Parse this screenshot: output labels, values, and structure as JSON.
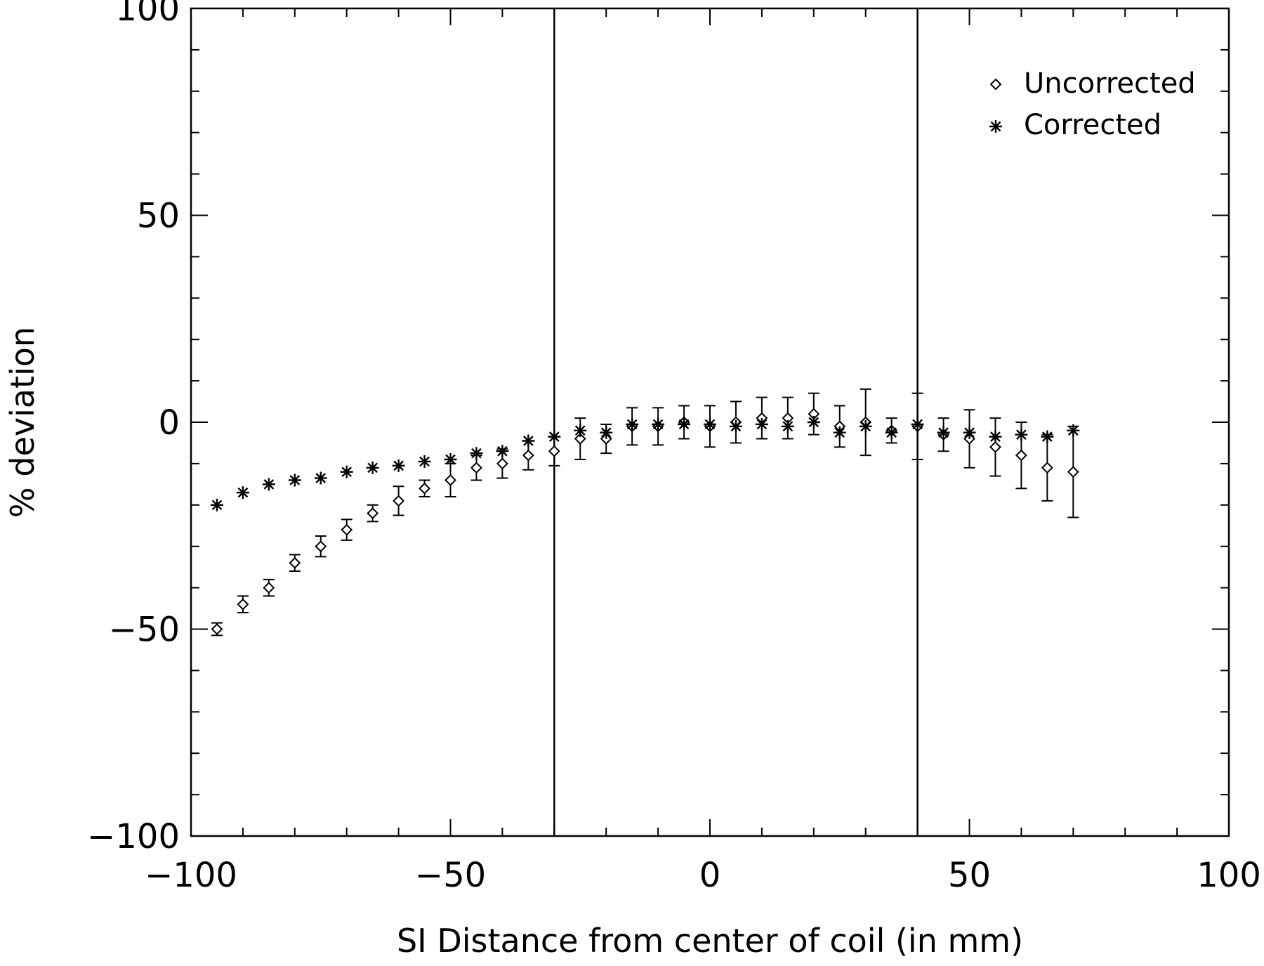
{
  "chart_data": {
    "type": "scatter",
    "xlabel": "SI Distance from center of coil (in mm)",
    "ylabel": "% deviation",
    "xlim": [
      -100,
      100
    ],
    "ylim": [
      -100,
      100
    ],
    "x_ticks": [
      -100,
      -50,
      0,
      50,
      100
    ],
    "y_ticks": [
      -100,
      -50,
      0,
      50,
      100
    ],
    "x_tick_labels": [
      "−100",
      "−50",
      "0",
      "50",
      "100"
    ],
    "y_tick_labels": [
      "−100",
      "−50",
      "0",
      "50",
      "100"
    ],
    "grid": false,
    "legend_position": "top-right",
    "vertical_lines": [
      -30,
      40
    ],
    "series": [
      {
        "name": "Uncorrected",
        "marker": "diamond",
        "points": [
          {
            "x": -95,
            "y": -50,
            "err": 1.5
          },
          {
            "x": -90,
            "y": -44,
            "err": 2
          },
          {
            "x": -85,
            "y": -40,
            "err": 2
          },
          {
            "x": -80,
            "y": -34,
            "err": 2
          },
          {
            "x": -75,
            "y": -30,
            "err": 2.5
          },
          {
            "x": -70,
            "y": -26,
            "err": 2.5
          },
          {
            "x": -65,
            "y": -22,
            "err": 2
          },
          {
            "x": -60,
            "y": -19,
            "err": 3.5
          },
          {
            "x": -55,
            "y": -16,
            "err": 2
          },
          {
            "x": -50,
            "y": -14,
            "err": 4
          },
          {
            "x": -45,
            "y": -11,
            "err": 3
          },
          {
            "x": -40,
            "y": -10,
            "err": 3.5
          },
          {
            "x": -35,
            "y": -8,
            "err": 3.5
          },
          {
            "x": -30,
            "y": -7,
            "err": 3.5
          },
          {
            "x": -25,
            "y": -4,
            "err": 5
          },
          {
            "x": -20,
            "y": -4,
            "err": 3.5
          },
          {
            "x": -15,
            "y": -1,
            "err": 4.5
          },
          {
            "x": -10,
            "y": -1,
            "err": 4.5
          },
          {
            "x": -5,
            "y": 0,
            "err": 4
          },
          {
            "x": 0,
            "y": -1,
            "err": 5
          },
          {
            "x": 5,
            "y": 0,
            "err": 5
          },
          {
            "x": 10,
            "y": 1,
            "err": 5
          },
          {
            "x": 15,
            "y": 1,
            "err": 5
          },
          {
            "x": 20,
            "y": 2,
            "err": 5
          },
          {
            "x": 25,
            "y": -1,
            "err": 5
          },
          {
            "x": 30,
            "y": 0,
            "err": 8
          },
          {
            "x": 35,
            "y": -2,
            "err": 3
          },
          {
            "x": 40,
            "y": -1,
            "err": 8
          },
          {
            "x": 45,
            "y": -3,
            "err": 4
          },
          {
            "x": 50,
            "y": -4,
            "err": 7
          },
          {
            "x": 55,
            "y": -6,
            "err": 7
          },
          {
            "x": 60,
            "y": -8,
            "err": 8
          },
          {
            "x": 65,
            "y": -11,
            "err": 8
          },
          {
            "x": 70,
            "y": -12,
            "err": 11
          }
        ]
      },
      {
        "name": "Corrected",
        "marker": "asterisk",
        "points": [
          {
            "x": -95,
            "y": -20
          },
          {
            "x": -90,
            "y": -17
          },
          {
            "x": -85,
            "y": -15
          },
          {
            "x": -80,
            "y": -14
          },
          {
            "x": -75,
            "y": -13.5
          },
          {
            "x": -70,
            "y": -12
          },
          {
            "x": -65,
            "y": -11
          },
          {
            "x": -60,
            "y": -10.5
          },
          {
            "x": -55,
            "y": -9.5
          },
          {
            "x": -50,
            "y": -9
          },
          {
            "x": -45,
            "y": -7.5
          },
          {
            "x": -40,
            "y": -7
          },
          {
            "x": -35,
            "y": -4.5
          },
          {
            "x": -30,
            "y": -3.5
          },
          {
            "x": -25,
            "y": -2
          },
          {
            "x": -20,
            "y": -2.5
          },
          {
            "x": -15,
            "y": -0.5
          },
          {
            "x": -10,
            "y": -0.5
          },
          {
            "x": -5,
            "y": -0.5
          },
          {
            "x": 0,
            "y": -0.5
          },
          {
            "x": 5,
            "y": -1
          },
          {
            "x": 10,
            "y": -0.5
          },
          {
            "x": 15,
            "y": -1
          },
          {
            "x": 20,
            "y": 0
          },
          {
            "x": 25,
            "y": -2.5
          },
          {
            "x": 30,
            "y": -1
          },
          {
            "x": 35,
            "y": -2.5
          },
          {
            "x": 40,
            "y": -0.5
          },
          {
            "x": 45,
            "y": -2.5
          },
          {
            "x": 50,
            "y": -2.5
          },
          {
            "x": 55,
            "y": -3.5
          },
          {
            "x": 60,
            "y": -3
          },
          {
            "x": 65,
            "y": -3.5
          },
          {
            "x": 70,
            "y": -2
          }
        ]
      }
    ]
  }
}
